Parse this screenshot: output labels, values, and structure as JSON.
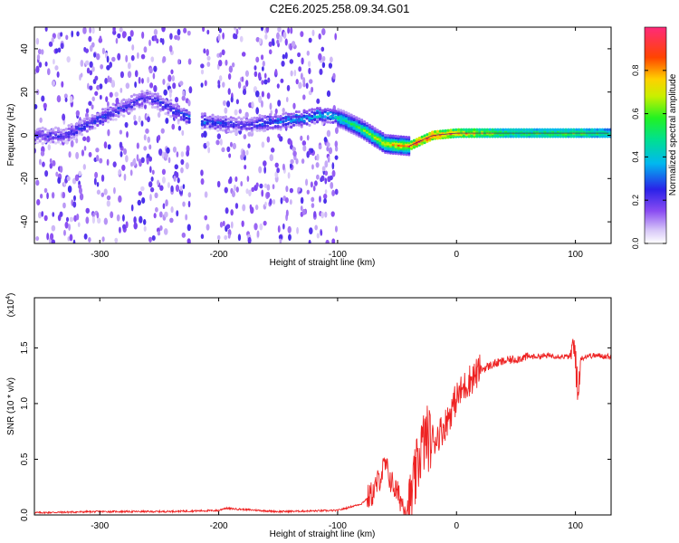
{
  "title": "C2E6.2025.258.09.34.G01",
  "chart_data": [
    {
      "type": "heatmap",
      "xlabel": "Height of straight line (km)",
      "ylabel": "Frequency (Hz)",
      "xlim": [
        -355,
        130
      ],
      "ylim": [
        -50,
        50
      ],
      "xticks": [
        -300,
        -200,
        -100,
        0,
        100
      ],
      "xtick_labels": [
        "-300",
        "-200",
        "-100",
        "0",
        "100"
      ],
      "yticks": [
        -40,
        -20,
        0,
        20,
        40
      ],
      "ytick_labels": [
        "-40",
        "-20",
        "0",
        "20",
        "40"
      ],
      "colorbar": {
        "label": "Normalized spectral amplitude",
        "range": [
          0,
          1
        ],
        "ticks": [
          0.0,
          0.2,
          0.4,
          0.6,
          0.8
        ],
        "tick_labels": [
          "0.0",
          "0.2",
          "0.4",
          "0.6",
          "0.8"
        ]
      },
      "ridge": {
        "description": "dominant frequency track",
        "x": [
          -330,
          -300,
          -260,
          -220,
          -180,
          -140,
          -110,
          -95,
          -80,
          -60,
          -40,
          -20,
          0,
          50,
          100,
          130
        ],
        "y": [
          0,
          8,
          18,
          7,
          5,
          7,
          10,
          7,
          3,
          -4,
          -5,
          0,
          1,
          1,
          1,
          1
        ],
        "amplitude": [
          0.25,
          0.3,
          0.25,
          0.35,
          0.25,
          0.4,
          0.45,
          0.5,
          0.6,
          0.75,
          0.85,
          0.95,
          0.8,
          0.55,
          0.6,
          0.5
        ]
      }
    },
    {
      "type": "line",
      "xlabel": "Height of straight line (km)",
      "ylabel": "SNR (10 * v/v)",
      "scale_label": "(x10",
      "scale_exp": "4",
      "scale_close": ")",
      "xlim": [
        -355,
        130
      ],
      "ylim": [
        0,
        1.95
      ],
      "xticks": [
        -300,
        -200,
        -100,
        0,
        100
      ],
      "xtick_labels": [
        "-300",
        "-200",
        "-100",
        "0",
        "100"
      ],
      "yticks": [
        0,
        0.5,
        1.0,
        1.5
      ],
      "ytick_labels": [
        "0.0",
        "0.5",
        "1.0",
        "1.5"
      ],
      "series": [
        {
          "name": "SNR",
          "color": "#ee2222",
          "x": [
            -355,
            -300,
            -250,
            -200,
            -195,
            -150,
            -100,
            -80,
            -70,
            -60,
            -55,
            -50,
            -45,
            -40,
            -35,
            -30,
            -25,
            -20,
            -10,
            0,
            10,
            20,
            30,
            40,
            60,
            80,
            95,
            100,
            102,
            104,
            110,
            120,
            130
          ],
          "y": [
            0.02,
            0.03,
            0.03,
            0.04,
            0.06,
            0.03,
            0.04,
            0.1,
            0.2,
            0.45,
            0.3,
            0.2,
            0.1,
            0.05,
            0.3,
            0.6,
            0.7,
            0.65,
            0.8,
            1.05,
            1.2,
            1.3,
            1.35,
            1.38,
            1.42,
            1.43,
            1.42,
            1.5,
            1.0,
            1.4,
            1.43,
            1.43,
            1.42
          ]
        }
      ]
    }
  ],
  "colors": {
    "trace": "#ee2222",
    "heat_low": "#7a3cf0"
  }
}
